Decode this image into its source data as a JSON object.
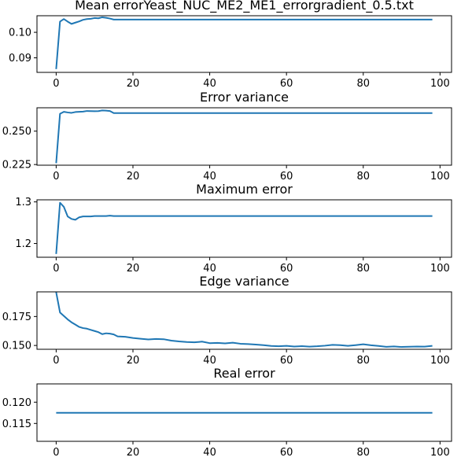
{
  "chart_data": [
    {
      "type": "line",
      "title": "Mean errorYeast_NUC_ME2_ME1_errorgradient_0.5.txt",
      "xlim": [
        -5,
        103
      ],
      "ylim": [
        0.0843,
        0.1065
      ],
      "x_ticks": [
        0,
        20,
        40,
        60,
        80,
        100
      ],
      "x_tick_labels": [
        "0",
        "20",
        "40",
        "60",
        "80",
        "100"
      ],
      "y_ticks": [
        0.09,
        0.1
      ],
      "y_tick_labels": [
        "0.09",
        "0.10"
      ],
      "series": [
        {
          "x": [
            0,
            1,
            2,
            3,
            4,
            5,
            6,
            7,
            8,
            9,
            10,
            11,
            12,
            13,
            14,
            15,
            16,
            20,
            30,
            40,
            50,
            60,
            70,
            80,
            90,
            98
          ],
          "y": [
            0.0856,
            0.1042,
            0.1052,
            0.1042,
            0.1033,
            0.1038,
            0.1043,
            0.1049,
            0.1052,
            0.1053,
            0.1056,
            0.1055,
            0.1059,
            0.1057,
            0.1054,
            0.105,
            0.105,
            0.105,
            0.105,
            0.105,
            0.105,
            0.105,
            0.105,
            0.105,
            0.105,
            0.105
          ]
        }
      ]
    },
    {
      "type": "line",
      "title": "Error variance",
      "xlim": [
        -5,
        103
      ],
      "ylim": [
        0.2245,
        0.2675
      ],
      "x_ticks": [
        0,
        20,
        40,
        60,
        80,
        100
      ],
      "x_tick_labels": [
        "0",
        "20",
        "40",
        "60",
        "80",
        "100"
      ],
      "y_ticks": [
        0.225,
        0.25
      ],
      "y_tick_labels": [
        "0.225",
        "0.250"
      ],
      "series": [
        {
          "x": [
            0,
            1,
            2,
            3,
            4,
            5,
            6,
            7,
            8,
            9,
            10,
            11,
            12,
            13,
            14,
            15,
            16,
            20,
            30,
            40,
            50,
            60,
            70,
            80,
            90,
            98
          ],
          "y": [
            0.226,
            0.263,
            0.2645,
            0.264,
            0.2637,
            0.2643,
            0.2645,
            0.2646,
            0.2651,
            0.265,
            0.2649,
            0.265,
            0.2655,
            0.2654,
            0.2651,
            0.2635,
            0.2635,
            0.2635,
            0.2635,
            0.2635,
            0.2635,
            0.2635,
            0.2635,
            0.2635,
            0.2635,
            0.2635
          ]
        }
      ]
    },
    {
      "type": "line",
      "title": "Maximum error",
      "xlim": [
        -5,
        103
      ],
      "ylim": [
        1.167,
        1.305
      ],
      "x_ticks": [
        0,
        20,
        40,
        60,
        80,
        100
      ],
      "x_tick_labels": [
        "0",
        "20",
        "40",
        "60",
        "80",
        "100"
      ],
      "y_ticks": [
        1.2,
        1.3
      ],
      "y_tick_labels": [
        "1.2",
        "1.3"
      ],
      "series": [
        {
          "x": [
            0,
            1,
            2,
            3,
            4,
            5,
            6,
            7,
            8,
            9,
            10,
            11,
            12,
            13,
            14,
            15,
            16,
            20,
            30,
            40,
            50,
            60,
            70,
            80,
            90,
            98
          ],
          "y": [
            1.175,
            1.298,
            1.288,
            1.265,
            1.259,
            1.257,
            1.263,
            1.265,
            1.265,
            1.265,
            1.266,
            1.266,
            1.266,
            1.266,
            1.267,
            1.266,
            1.266,
            1.266,
            1.266,
            1.266,
            1.266,
            1.266,
            1.266,
            1.266,
            1.266,
            1.266
          ]
        }
      ]
    },
    {
      "type": "line",
      "title": "Edge variance",
      "xlim": [
        -5,
        103
      ],
      "ylim": [
        0.1467,
        0.1963
      ],
      "x_ticks": [
        0,
        20,
        40,
        60,
        80,
        100
      ],
      "x_tick_labels": [
        "0",
        "20",
        "40",
        "60",
        "80",
        "100"
      ],
      "y_ticks": [
        0.15,
        0.175
      ],
      "y_tick_labels": [
        "0.150",
        "0.175"
      ],
      "series": [
        {
          "x": [
            0,
            1,
            2,
            3,
            4,
            5,
            6,
            7,
            8,
            9,
            10,
            11,
            12,
            13,
            14,
            15,
            16,
            18,
            20,
            22,
            24,
            26,
            28,
            30,
            32,
            34,
            36,
            38,
            40,
            42,
            44,
            46,
            48,
            50,
            52,
            54,
            56,
            58,
            60,
            62,
            64,
            66,
            68,
            70,
            72,
            74,
            76,
            78,
            80,
            82,
            84,
            86,
            88,
            90,
            92,
            94,
            96,
            98
          ],
          "y": [
            0.196,
            0.1785,
            0.1755,
            0.1725,
            0.17,
            0.168,
            0.166,
            0.165,
            0.1645,
            0.1635,
            0.1625,
            0.1615,
            0.1598,
            0.1605,
            0.1602,
            0.1595,
            0.1578,
            0.1575,
            0.1565,
            0.1558,
            0.1552,
            0.1556,
            0.1554,
            0.1542,
            0.1535,
            0.153,
            0.1527,
            0.1533,
            0.152,
            0.1522,
            0.1518,
            0.1524,
            0.1515,
            0.1512,
            0.1508,
            0.1503,
            0.1496,
            0.1493,
            0.1497,
            0.1491,
            0.1494,
            0.149,
            0.1493,
            0.1498,
            0.1505,
            0.1503,
            0.1497,
            0.1503,
            0.151,
            0.1502,
            0.1496,
            0.1488,
            0.1492,
            0.1487,
            0.1489,
            0.1491,
            0.149,
            0.1497
          ]
        }
      ]
    },
    {
      "type": "line",
      "title": "Real error",
      "xlim": [
        -5,
        103
      ],
      "ylim": [
        0.1108,
        0.1243
      ],
      "x_ticks": [
        0,
        20,
        40,
        60,
        80,
        100
      ],
      "x_tick_labels": [
        "0",
        "20",
        "40",
        "60",
        "80",
        "100"
      ],
      "y_ticks": [
        0.115,
        0.12
      ],
      "y_tick_labels": [
        "0.115",
        "0.120"
      ],
      "series": [
        {
          "x": [
            0,
            98
          ],
          "y": [
            0.1175,
            0.1175
          ]
        }
      ]
    }
  ]
}
